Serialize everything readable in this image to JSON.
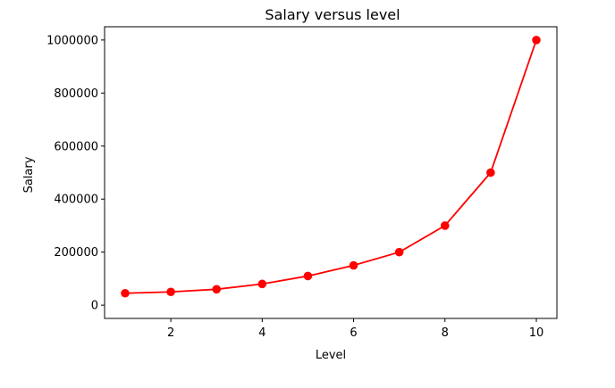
{
  "chart_data": {
    "type": "line",
    "title": "Salary versus level",
    "xlabel": "Level",
    "ylabel": "Salary",
    "xlim": [
      0.55,
      10.45
    ],
    "ylim": [
      -50000,
      1050000
    ],
    "xticks": [
      2,
      4,
      6,
      8,
      10
    ],
    "yticks": [
      0,
      200000,
      400000,
      600000,
      800000,
      1000000
    ],
    "x": [
      1,
      2,
      3,
      4,
      5,
      6,
      7,
      8,
      9,
      10
    ],
    "series": [
      {
        "values": [
          45000,
          50000,
          60000,
          80000,
          110000,
          150000,
          200000,
          300000,
          500000,
          1000000
        ],
        "color": "#ff0000",
        "marker": "circle"
      }
    ],
    "grid": false,
    "legend": "none"
  }
}
